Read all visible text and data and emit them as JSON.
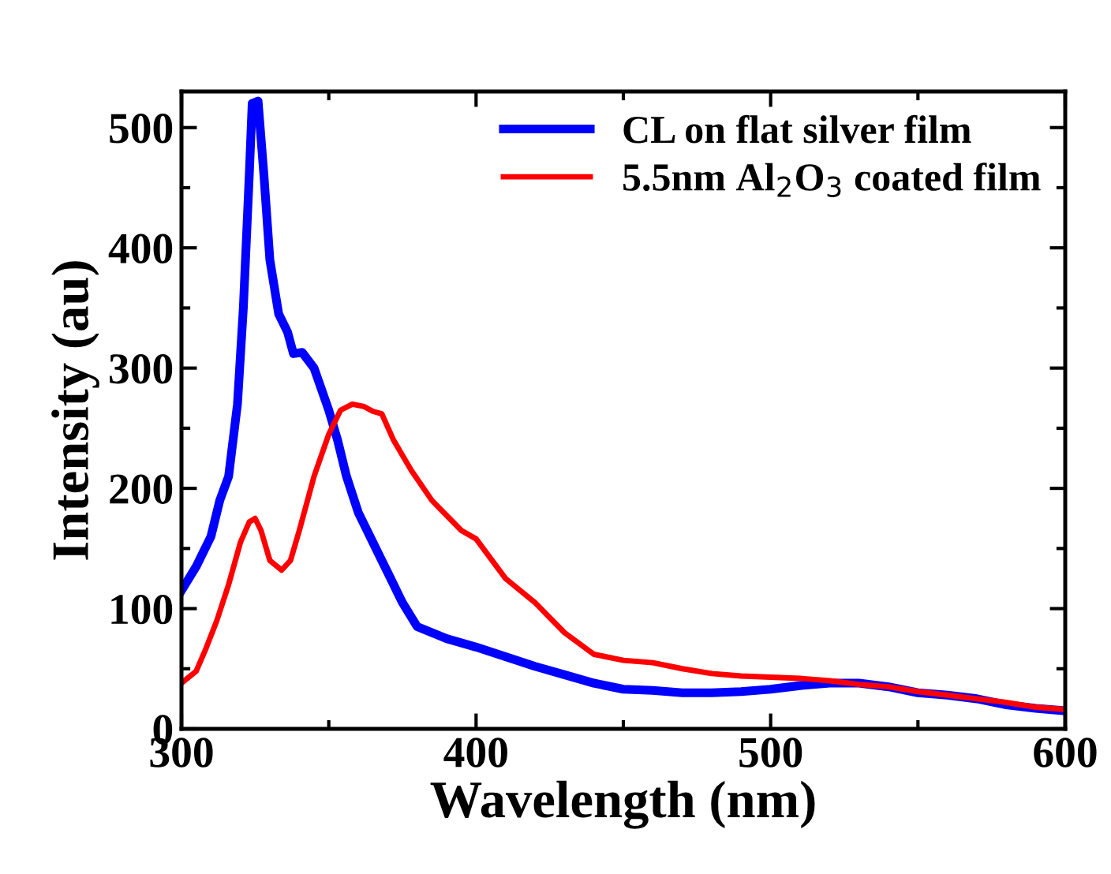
{
  "chart_data": {
    "type": "line",
    "xlabel": "Wavelength (nm)",
    "ylabel": "Intensity (au)",
    "xlim": [
      300,
      600
    ],
    "ylim": [
      0,
      530
    ],
    "xticks": [
      300,
      400,
      500,
      600
    ],
    "yticks": [
      0,
      100,
      200,
      300,
      400,
      500
    ],
    "grid": false,
    "legend": "top right",
    "marker": "none",
    "line_style": "solid",
    "series": [
      {
        "name": "CL on flat silver film",
        "color": "#0000ff",
        "x": [
          300,
          305,
          310,
          313,
          316,
          319,
          321,
          323,
          324,
          326,
          328,
          330,
          333,
          336,
          338,
          341,
          345,
          350,
          353,
          356,
          360,
          365,
          370,
          375,
          380,
          390,
          400,
          410,
          420,
          430,
          440,
          450,
          460,
          470,
          480,
          490,
          500,
          510,
          520,
          530,
          540,
          550,
          560,
          570,
          580,
          590,
          600
        ],
        "values": [
          115,
          135,
          160,
          190,
          210,
          270,
          350,
          460,
          520,
          522,
          460,
          390,
          345,
          330,
          312,
          313,
          300,
          265,
          240,
          210,
          180,
          155,
          130,
          105,
          85,
          75,
          68,
          60,
          52,
          45,
          38,
          33,
          32,
          30,
          30,
          31,
          33,
          36,
          38,
          38,
          35,
          30,
          28,
          25,
          20,
          17,
          15
        ]
      },
      {
        "name": "5.5nm Al$_{2}$O$_{3}$ coated film",
        "color": "#ff0000",
        "x": [
          300,
          305,
          308,
          312,
          316,
          320,
          323,
          325,
          327,
          330,
          334,
          337,
          340,
          345,
          350,
          354,
          358,
          362,
          365,
          368,
          372,
          378,
          385,
          395,
          400,
          410,
          420,
          430,
          440,
          450,
          460,
          470,
          480,
          490,
          500,
          510,
          520,
          530,
          540,
          550,
          560,
          570,
          580,
          590,
          600
        ],
        "values": [
          38,
          48,
          65,
          90,
          120,
          155,
          172,
          175,
          165,
          140,
          132,
          140,
          165,
          210,
          245,
          265,
          270,
          268,
          264,
          262,
          240,
          215,
          190,
          165,
          158,
          125,
          105,
          80,
          62,
          57,
          55,
          50,
          46,
          44,
          43,
          42,
          40,
          37,
          35,
          31,
          28,
          25,
          22,
          18,
          16
        ]
      }
    ]
  }
}
